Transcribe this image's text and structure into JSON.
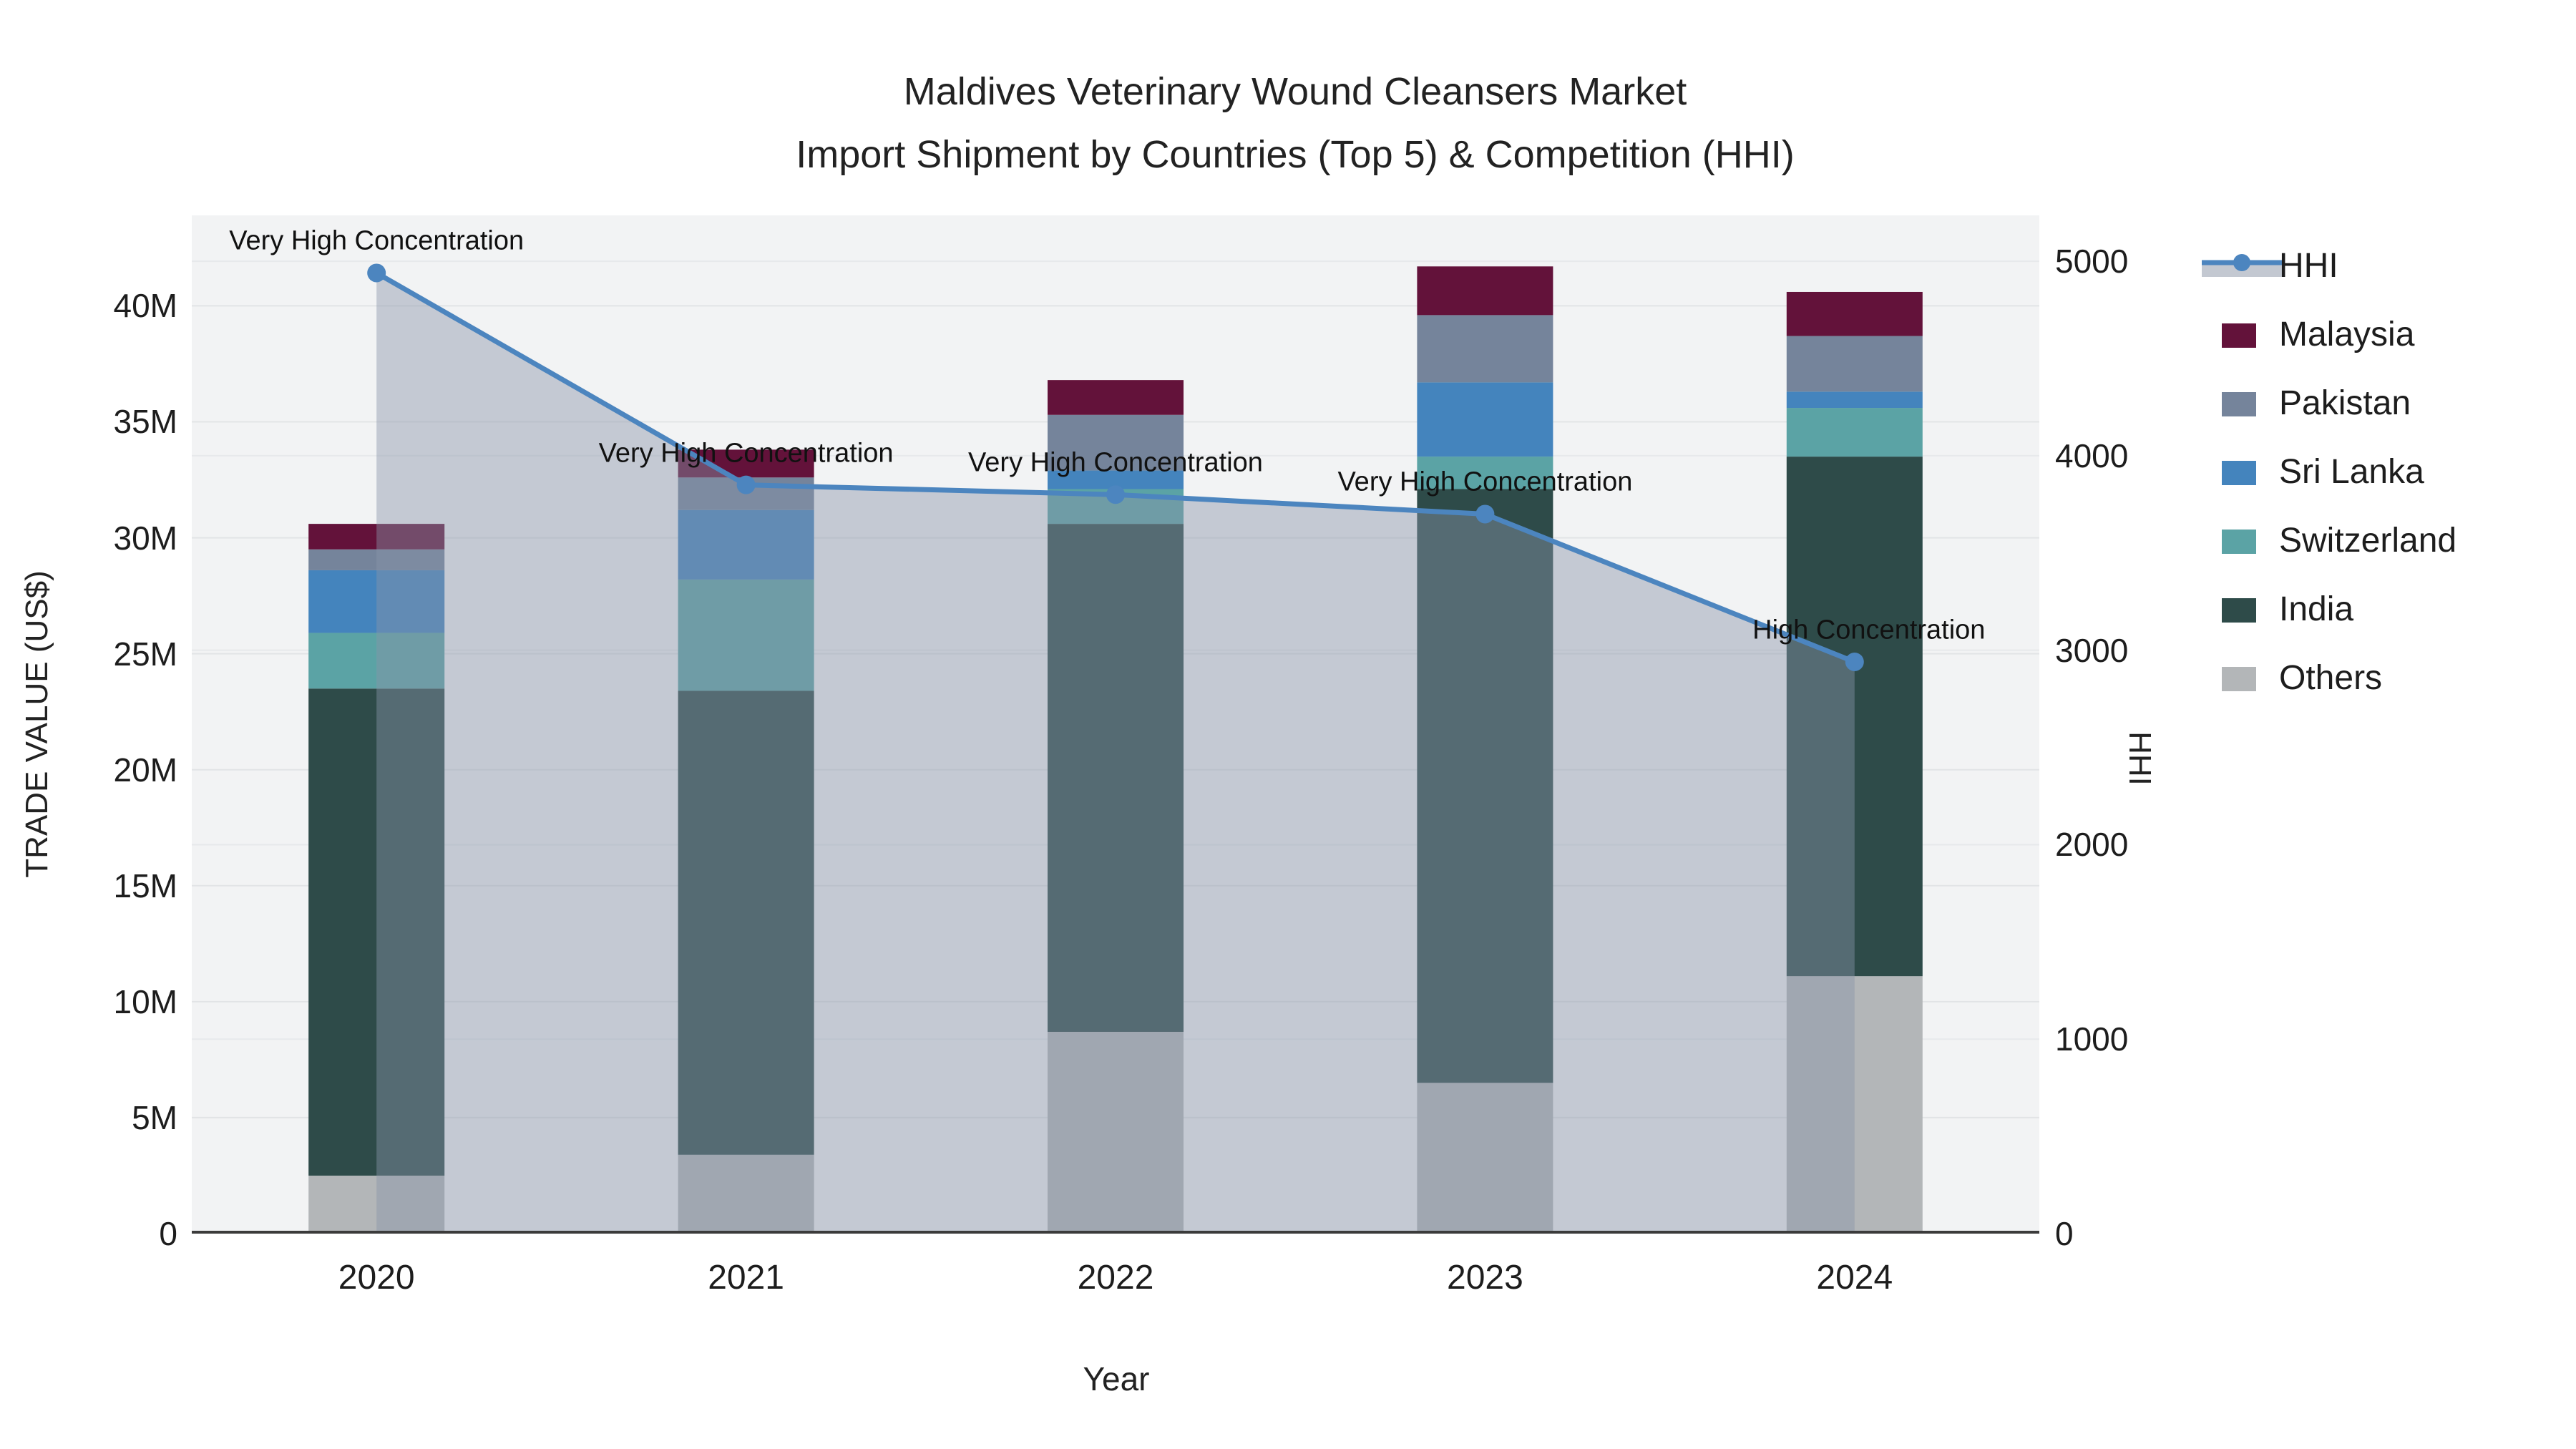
{
  "title": {
    "line1": "Maldives Veterinary Wound Cleansers Market",
    "line2": "Import Shipment by Countries (Top 5) & Competition (HHI)"
  },
  "axes": {
    "left": {
      "title": "TRADE VALUE (US$)",
      "ticks": [
        {
          "label": "0",
          "value": 0
        },
        {
          "label": "5M",
          "value": 5
        },
        {
          "label": "10M",
          "value": 10
        },
        {
          "label": "15M",
          "value": 15
        },
        {
          "label": "20M",
          "value": 20
        },
        {
          "label": "25M",
          "value": 25
        },
        {
          "label": "30M",
          "value": 30
        },
        {
          "label": "35M",
          "value": 35
        },
        {
          "label": "40M",
          "value": 40
        }
      ]
    },
    "right": {
      "title": "HHI",
      "ticks": [
        {
          "label": "0",
          "value": 0
        },
        {
          "label": "1000",
          "value": 1000
        },
        {
          "label": "2000",
          "value": 2000
        },
        {
          "label": "3000",
          "value": 3000
        },
        {
          "label": "4000",
          "value": 4000
        },
        {
          "label": "5000",
          "value": 5000
        }
      ]
    },
    "x": {
      "title": "Year"
    }
  },
  "legend": {
    "items": [
      {
        "label": "HHI",
        "swatch": "line",
        "color": "#4C85BF",
        "fill": "#c3c8d1"
      },
      {
        "label": "Malaysia",
        "swatch": "box",
        "color": "#63123A"
      },
      {
        "label": "Pakistan",
        "swatch": "box",
        "color": "#75849B"
      },
      {
        "label": "Sri Lanka",
        "swatch": "box",
        "color": "#4484BD"
      },
      {
        "label": "Switzerland",
        "swatch": "box",
        "color": "#5BA3A5"
      },
      {
        "label": "India",
        "swatch": "box",
        "color": "#2E4B49"
      },
      {
        "label": "Others",
        "swatch": "box",
        "color": "#B3B6B8"
      }
    ]
  },
  "annotations": [
    {
      "text": "Very High Concentration",
      "category": "2020"
    },
    {
      "text": "Very High Concentration",
      "category": "2021"
    },
    {
      "text": "Very High Concentration",
      "category": "2022"
    },
    {
      "text": "Very High Concentration",
      "category": "2023"
    },
    {
      "text": "High Concentration",
      "category": "2024"
    }
  ],
  "chart_data": {
    "type": "bar",
    "subtype": "stacked bars with secondary-axis line",
    "title": "Maldives Veterinary Wound Cleansers Market",
    "subtitle": "Import Shipment by Countries (Top 5) & Competition (HHI)",
    "categories": [
      "2020",
      "2021",
      "2022",
      "2023",
      "2024"
    ],
    "xlabel": "Year",
    "ylabel": "TRADE VALUE (US$)",
    "ylabel_right": "HHI",
    "bar_unit": "US$ millions",
    "stack_order_bottom_to_top": [
      "Others",
      "India",
      "Switzerland",
      "Sri Lanka",
      "Pakistan",
      "Malaysia"
    ],
    "series": [
      {
        "name": "Malaysia",
        "color": "#63123A",
        "values": [
          1.1,
          1.2,
          1.5,
          2.1,
          1.9
        ]
      },
      {
        "name": "Pakistan",
        "color": "#75849B",
        "values": [
          0.9,
          1.4,
          2.4,
          2.9,
          2.4
        ]
      },
      {
        "name": "Sri Lanka",
        "color": "#4484BD",
        "values": [
          2.7,
          3.0,
          0.8,
          3.2,
          0.7
        ]
      },
      {
        "name": "Switzerland",
        "color": "#5BA3A5",
        "values": [
          2.4,
          4.8,
          1.5,
          1.4,
          2.1
        ]
      },
      {
        "name": "India",
        "color": "#2E4B49",
        "values": [
          21.0,
          20.0,
          21.9,
          25.6,
          22.4
        ]
      },
      {
        "name": "Others",
        "color": "#B3B6B8",
        "values": [
          2.5,
          3.4,
          8.7,
          6.5,
          11.1
        ]
      }
    ],
    "bar_totals_millions": [
      30.6,
      33.8,
      36.8,
      41.7,
      40.6
    ],
    "hhi_line": {
      "name": "HHI",
      "axis": "right",
      "color": "#4C85BF",
      "area_fill": "rgba(136,148,168,0.44)",
      "values": [
        4940,
        3850,
        3800,
        3700,
        2940
      ]
    },
    "ylim_left_millions": [
      0,
      43.9
    ],
    "ylim_right": [
      0,
      5236
    ],
    "grid": true,
    "legend_position": "right",
    "plot_background": "#f2f3f4"
  }
}
